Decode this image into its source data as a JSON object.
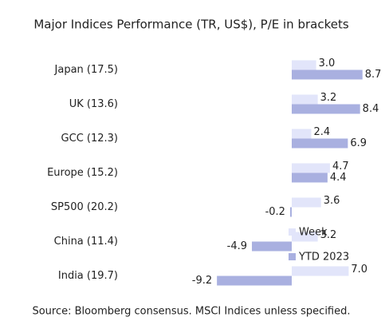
{
  "chart_data": {
    "type": "hbar",
    "title": "Major Indices Performance (TR, US$), P/E in brackets",
    "source": "Source: Bloomberg consensus. MSCI Indices unless specified.",
    "categories": [
      "Japan (17.5)",
      "UK (13.6)",
      "GCC (12.3)",
      "Europe (15.2)",
      "SP500 (20.2)",
      "China (11.4)",
      "India (19.7)"
    ],
    "series": [
      {
        "name": "Week",
        "color": "#e2e5fa",
        "values": [
          3.0,
          3.2,
          2.4,
          4.7,
          3.6,
          3.2,
          7.0
        ],
        "value_labels": [
          "3.0",
          "3.2",
          "2.4",
          "4.7",
          "3.6",
          "3.2",
          "7.0"
        ]
      },
      {
        "name": "YTD 2023",
        "color": "#a9b0e0",
        "values": [
          8.7,
          8.4,
          6.9,
          4.4,
          -0.2,
          -4.9,
          -9.2
        ],
        "value_labels": [
          "8.7",
          "8.4",
          "6.9",
          "4.4",
          "-0.2",
          "-4.9",
          "-9.2"
        ]
      }
    ],
    "legend": "lower-right"
  }
}
